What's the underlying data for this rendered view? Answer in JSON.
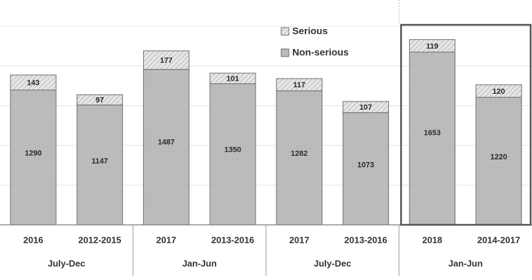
{
  "chart_data": {
    "type": "bar",
    "stacked": true,
    "categories": [
      "2016",
      "2012-2015",
      "2017",
      "2013-2016",
      "2017",
      "2013-2016",
      "2018",
      "2014-2017"
    ],
    "groups": [
      {
        "label": "July-Dec",
        "categories": [
          "2016",
          "2012-2015"
        ]
      },
      {
        "label": "Jan-Jun",
        "categories": [
          "2017",
          "2013-2016"
        ]
      },
      {
        "label": "July-Dec",
        "categories": [
          "2017",
          "2013-2016"
        ]
      },
      {
        "label": "Jan-Jun",
        "categories": [
          "2018",
          "2014-2017"
        ]
      }
    ],
    "series": [
      {
        "name": "Non-serious",
        "values": [
          1290,
          1147,
          1487,
          1350,
          1282,
          1073,
          1653,
          1220
        ],
        "color": "#b5b5b5"
      },
      {
        "name": "Serious",
        "values": [
          143,
          97,
          177,
          101,
          117,
          107,
          119,
          120
        ],
        "color": "#dcdcdc"
      }
    ],
    "legend_position": "top-center",
    "highlighted_group": 3,
    "ylim": [
      0,
      1900
    ],
    "grid": true
  }
}
